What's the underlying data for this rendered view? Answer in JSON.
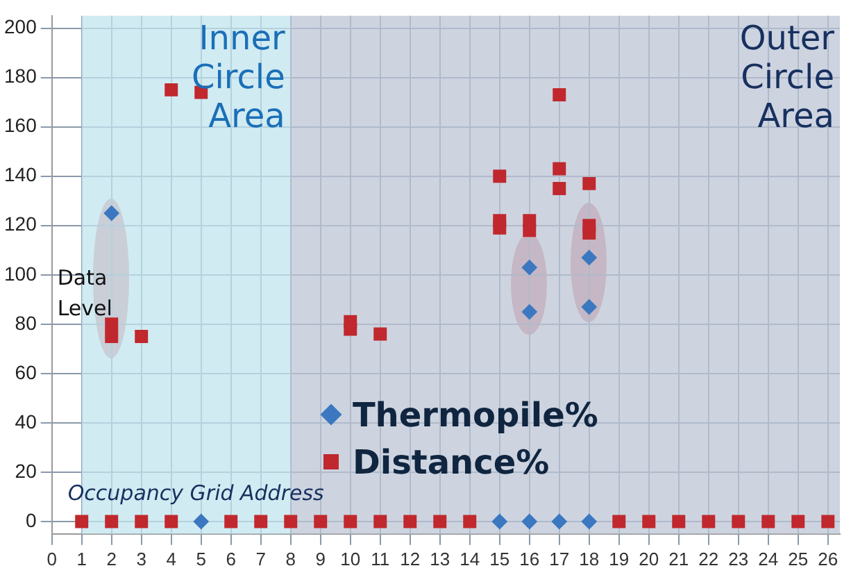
{
  "chart_data": {
    "type": "scatter",
    "xlabel": "Occupancy Grid Address",
    "ylabel": "Data Level",
    "xlim": [
      0,
      26.4
    ],
    "xticks": [
      0,
      1,
      2,
      3,
      4,
      5,
      6,
      7,
      8,
      9,
      10,
      11,
      12,
      13,
      14,
      15,
      16,
      17,
      18,
      19,
      20,
      21,
      22,
      23,
      24,
      25,
      26
    ],
    "ylim": [
      -5,
      205
    ],
    "yticks": [
      0,
      20,
      40,
      60,
      80,
      100,
      120,
      140,
      160,
      180,
      200
    ],
    "grid": true,
    "legend": "center",
    "bands": [
      {
        "axis": "x",
        "from": 1,
        "to": 8,
        "label": "Inner Circle Area",
        "color": "#c2e4ee"
      },
      {
        "axis": "x",
        "from": 8,
        "to": 26.4,
        "label": "Outer Circle Area",
        "color": "#bcc5d6"
      }
    ],
    "series": [
      {
        "name": "Thermopile%",
        "color": "#3b78c0",
        "marker": "diamond",
        "x": [
          2,
          16,
          16,
          18,
          18,
          5,
          15,
          16,
          17,
          18
        ],
        "values": [
          125,
          103,
          85,
          107,
          87,
          0,
          0,
          0,
          0,
          0
        ]
      },
      {
        "name": "Distance%",
        "color": "#c0282d",
        "marker": "square",
        "x": [
          2,
          2,
          3,
          4,
          5,
          10,
          10,
          11,
          15,
          15,
          15,
          16,
          16,
          17,
          17,
          17,
          18,
          18,
          18,
          1,
          2,
          3,
          4,
          6,
          7,
          8,
          9,
          10,
          11,
          12,
          13,
          14,
          19,
          20,
          21,
          22,
          23,
          24,
          25,
          26
        ],
        "values": [
          80,
          75,
          75,
          175,
          174,
          81,
          78,
          76,
          140,
          122,
          119,
          122,
          118,
          173,
          143,
          135,
          137,
          120,
          117,
          0,
          0,
          0,
          0,
          0,
          0,
          0,
          0,
          0,
          0,
          0,
          0,
          0,
          0,
          0,
          0,
          0,
          0,
          0,
          0,
          0
        ]
      }
    ]
  }
}
